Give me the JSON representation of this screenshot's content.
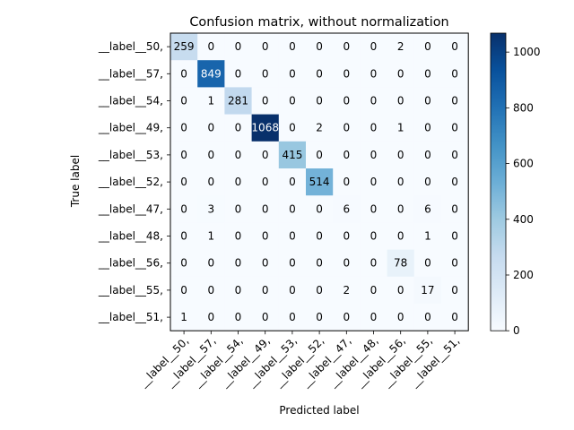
{
  "chart_data": {
    "type": "heatmap",
    "title": "Confusion matrix, without normalization",
    "xlabel": "Predicted label",
    "ylabel": "True label",
    "row_labels": [
      "__label__50,",
      "__label__57,",
      "__label__54,",
      "__label__49,",
      "__label__53,",
      "__label__52,",
      "__label__47,",
      "__label__48,",
      "__label__56,",
      "__label__55,",
      "__label__51,"
    ],
    "col_labels": [
      "__label__50,",
      "__label__57,",
      "__label__54,",
      "__label__49,",
      "__label__53,",
      "__label__52,",
      "__label__47,",
      "__label__48,",
      "__label__56,",
      "__label__55,",
      "__label__51,"
    ],
    "matrix": [
      [
        259,
        0,
        0,
        0,
        0,
        0,
        0,
        0,
        2,
        0,
        0
      ],
      [
        0,
        849,
        0,
        0,
        0,
        0,
        0,
        0,
        0,
        0,
        0
      ],
      [
        0,
        1,
        281,
        0,
        0,
        0,
        0,
        0,
        0,
        0,
        0
      ],
      [
        0,
        0,
        0,
        1068,
        0,
        2,
        0,
        0,
        1,
        0,
        0
      ],
      [
        0,
        0,
        0,
        0,
        415,
        0,
        0,
        0,
        0,
        0,
        0
      ],
      [
        0,
        0,
        0,
        0,
        0,
        514,
        0,
        0,
        0,
        0,
        0
      ],
      [
        0,
        3,
        0,
        0,
        0,
        0,
        6,
        0,
        0,
        6,
        0
      ],
      [
        0,
        1,
        0,
        0,
        0,
        0,
        0,
        0,
        0,
        1,
        0
      ],
      [
        0,
        0,
        0,
        0,
        0,
        0,
        0,
        0,
        78,
        0,
        0
      ],
      [
        0,
        0,
        0,
        0,
        0,
        0,
        2,
        0,
        0,
        17,
        0
      ],
      [
        1,
        0,
        0,
        0,
        0,
        0,
        0,
        0,
        0,
        0,
        0
      ]
    ],
    "colormap": "Blues",
    "vmin": 0,
    "vmax": 1068,
    "colorbar_ticks": [
      0,
      200,
      400,
      600,
      800,
      1000
    ],
    "grid": false
  }
}
